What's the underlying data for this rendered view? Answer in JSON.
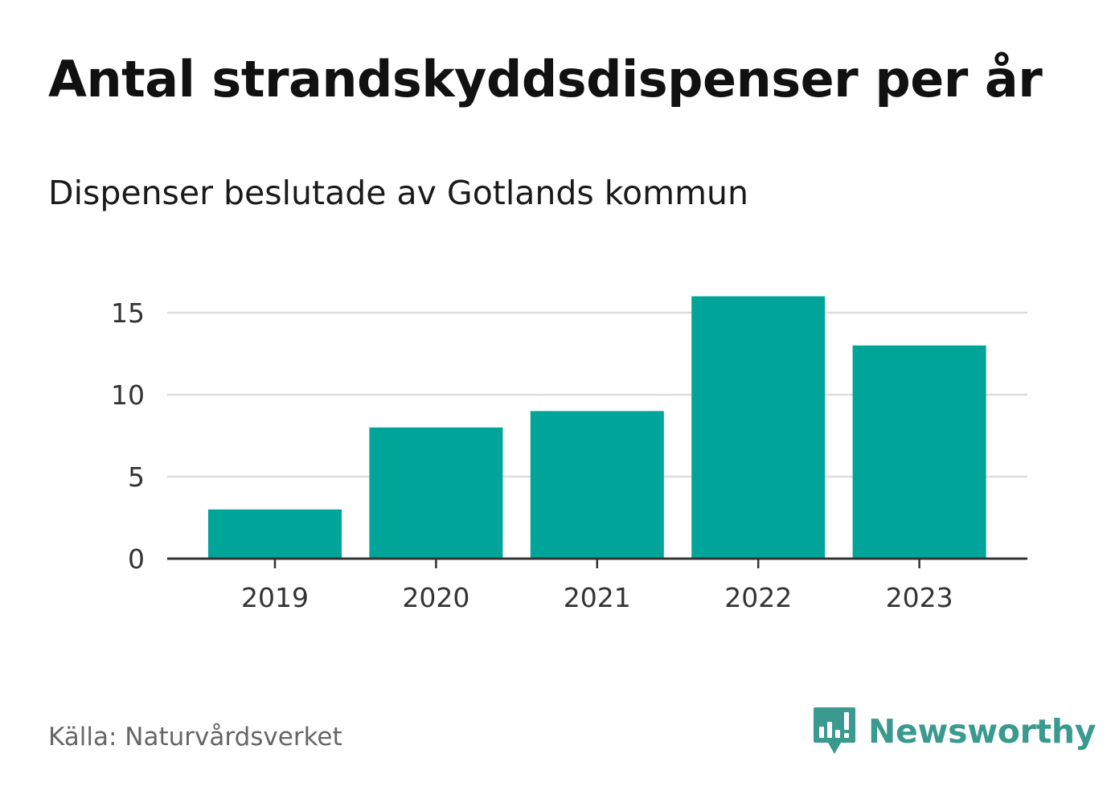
{
  "header": {
    "title": "Antal strandskyddsdispenser per år",
    "subtitle": "Dispenser beslutade av Gotlands kommun"
  },
  "footer": {
    "source": "Källa: Naturvårdsverket",
    "brand": "Newsworthy",
    "brand_icon": "newsworthy-logo-icon"
  },
  "colors": {
    "bar": "#00a499",
    "grid": "#dddddd",
    "axis": "#333333",
    "brand": "#3a9a8f"
  },
  "chart_data": {
    "type": "bar",
    "title": "Antal strandskyddsdispenser per år",
    "subtitle": "Dispenser beslutade av Gotlands kommun",
    "categories": [
      "2019",
      "2020",
      "2021",
      "2022",
      "2023"
    ],
    "values": [
      3,
      8,
      9,
      16,
      13
    ],
    "yticks": [
      0,
      5,
      10,
      15
    ],
    "ylim": [
      0,
      15
    ],
    "xlabel": "",
    "ylabel": "",
    "grid": true
  }
}
